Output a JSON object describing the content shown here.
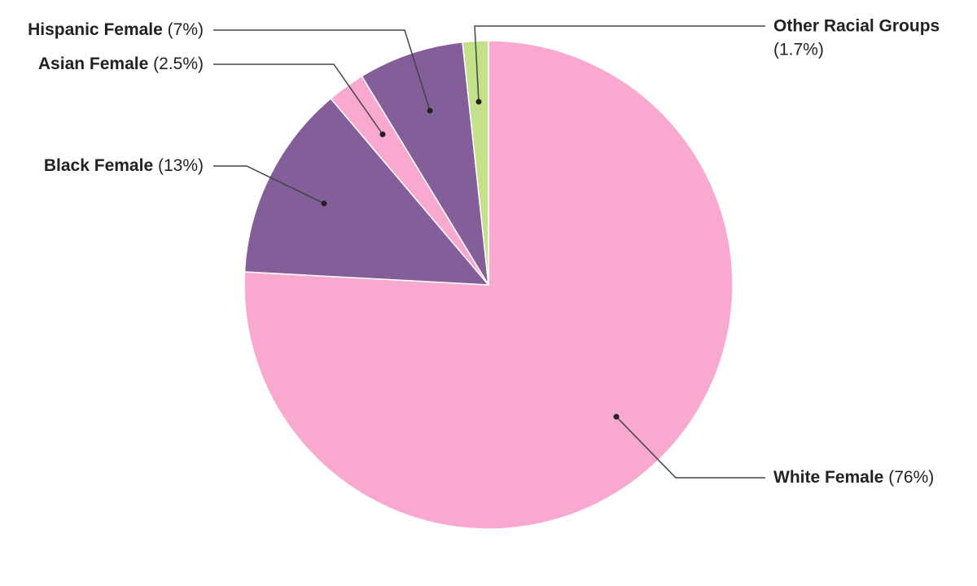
{
  "chart_data": {
    "type": "pie",
    "categories": [
      "White Female",
      "Black Female",
      "Asian Female",
      "Hispanic Female",
      "Other Racial Groups"
    ],
    "values": [
      76,
      13,
      2.5,
      7,
      1.7
    ],
    "value_labels": [
      "(76%)",
      "(13%)",
      "(2.5%)",
      "(7%)",
      "(1.7%)"
    ],
    "colors": [
      "#f9a8d0",
      "#845e99",
      "#f9a8d0",
      "#845e99",
      "#c4e08a"
    ]
  }
}
